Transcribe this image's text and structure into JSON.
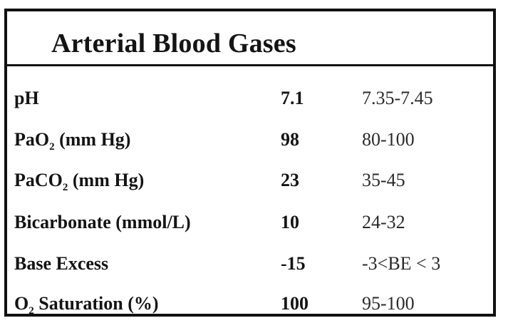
{
  "title": "Arterial Blood Gases",
  "rows": [
    {
      "label": "pH",
      "sub": "",
      "suffix": "",
      "value": "7.1",
      "normal": "7.35-7.45"
    },
    {
      "label": "PaO",
      "sub": "2",
      "suffix": " (mm Hg)",
      "value": "98",
      "normal": "80-100"
    },
    {
      "label": "PaCO",
      "sub": "2",
      "suffix": " (mm Hg)",
      "value": "23",
      "normal": "35-45"
    },
    {
      "label": "Bicarbonate (mmol/L)",
      "sub": "",
      "suffix": "",
      "value": "10",
      "normal": "24-32"
    },
    {
      "label": "Base Excess",
      "sub": "",
      "suffix": "",
      "value": "-15",
      "normal": "-3<BE < 3"
    },
    {
      "label": "O",
      "sub": "2",
      "suffix": " Saturation (%)",
      "value": "100",
      "normal": "95-100"
    }
  ]
}
